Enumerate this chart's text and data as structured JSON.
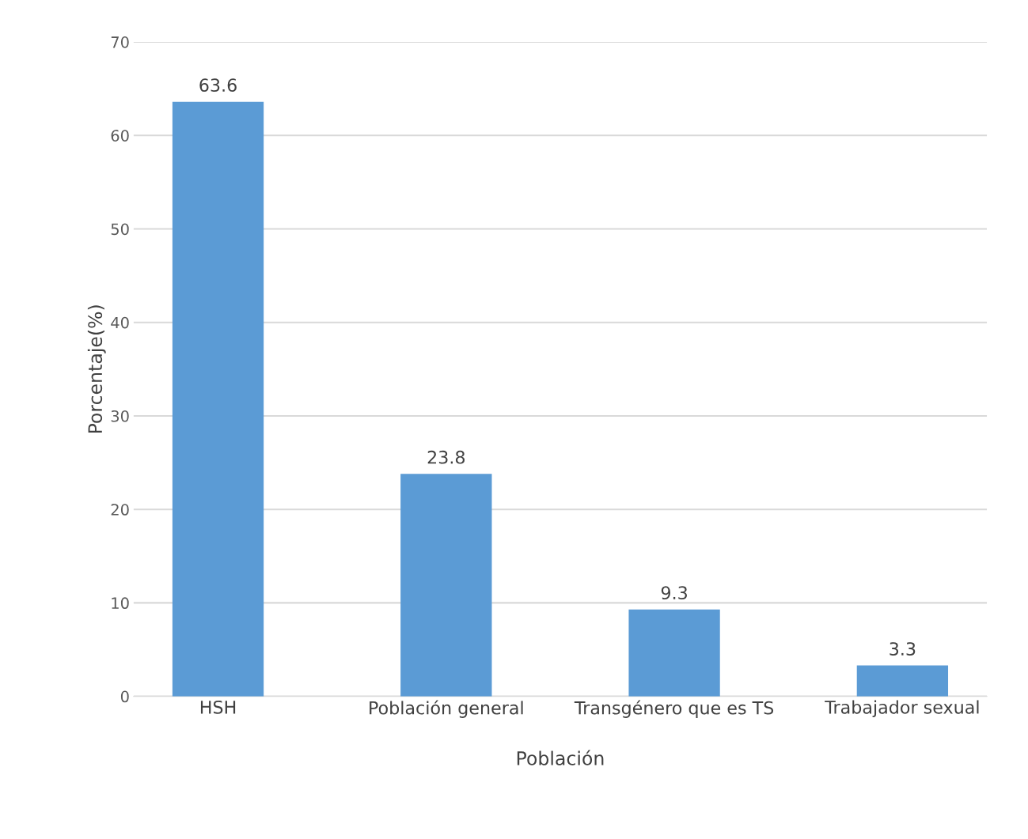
{
  "chart_data": {
    "type": "bar",
    "xlabel": "Población",
    "ylabel": "Porcentaje(%)",
    "categories": [
      "HSH",
      "Población general",
      "Transgénero que es TS",
      "Trabajador sexual"
    ],
    "values": [
      63.6,
      23.8,
      9.3,
      3.3
    ],
    "color": "#5b9bd5",
    "ylim": [
      0,
      70
    ],
    "yticks": [
      0,
      10,
      20,
      30,
      40,
      50,
      60,
      70
    ],
    "grid": "y",
    "data_labels": true
  }
}
